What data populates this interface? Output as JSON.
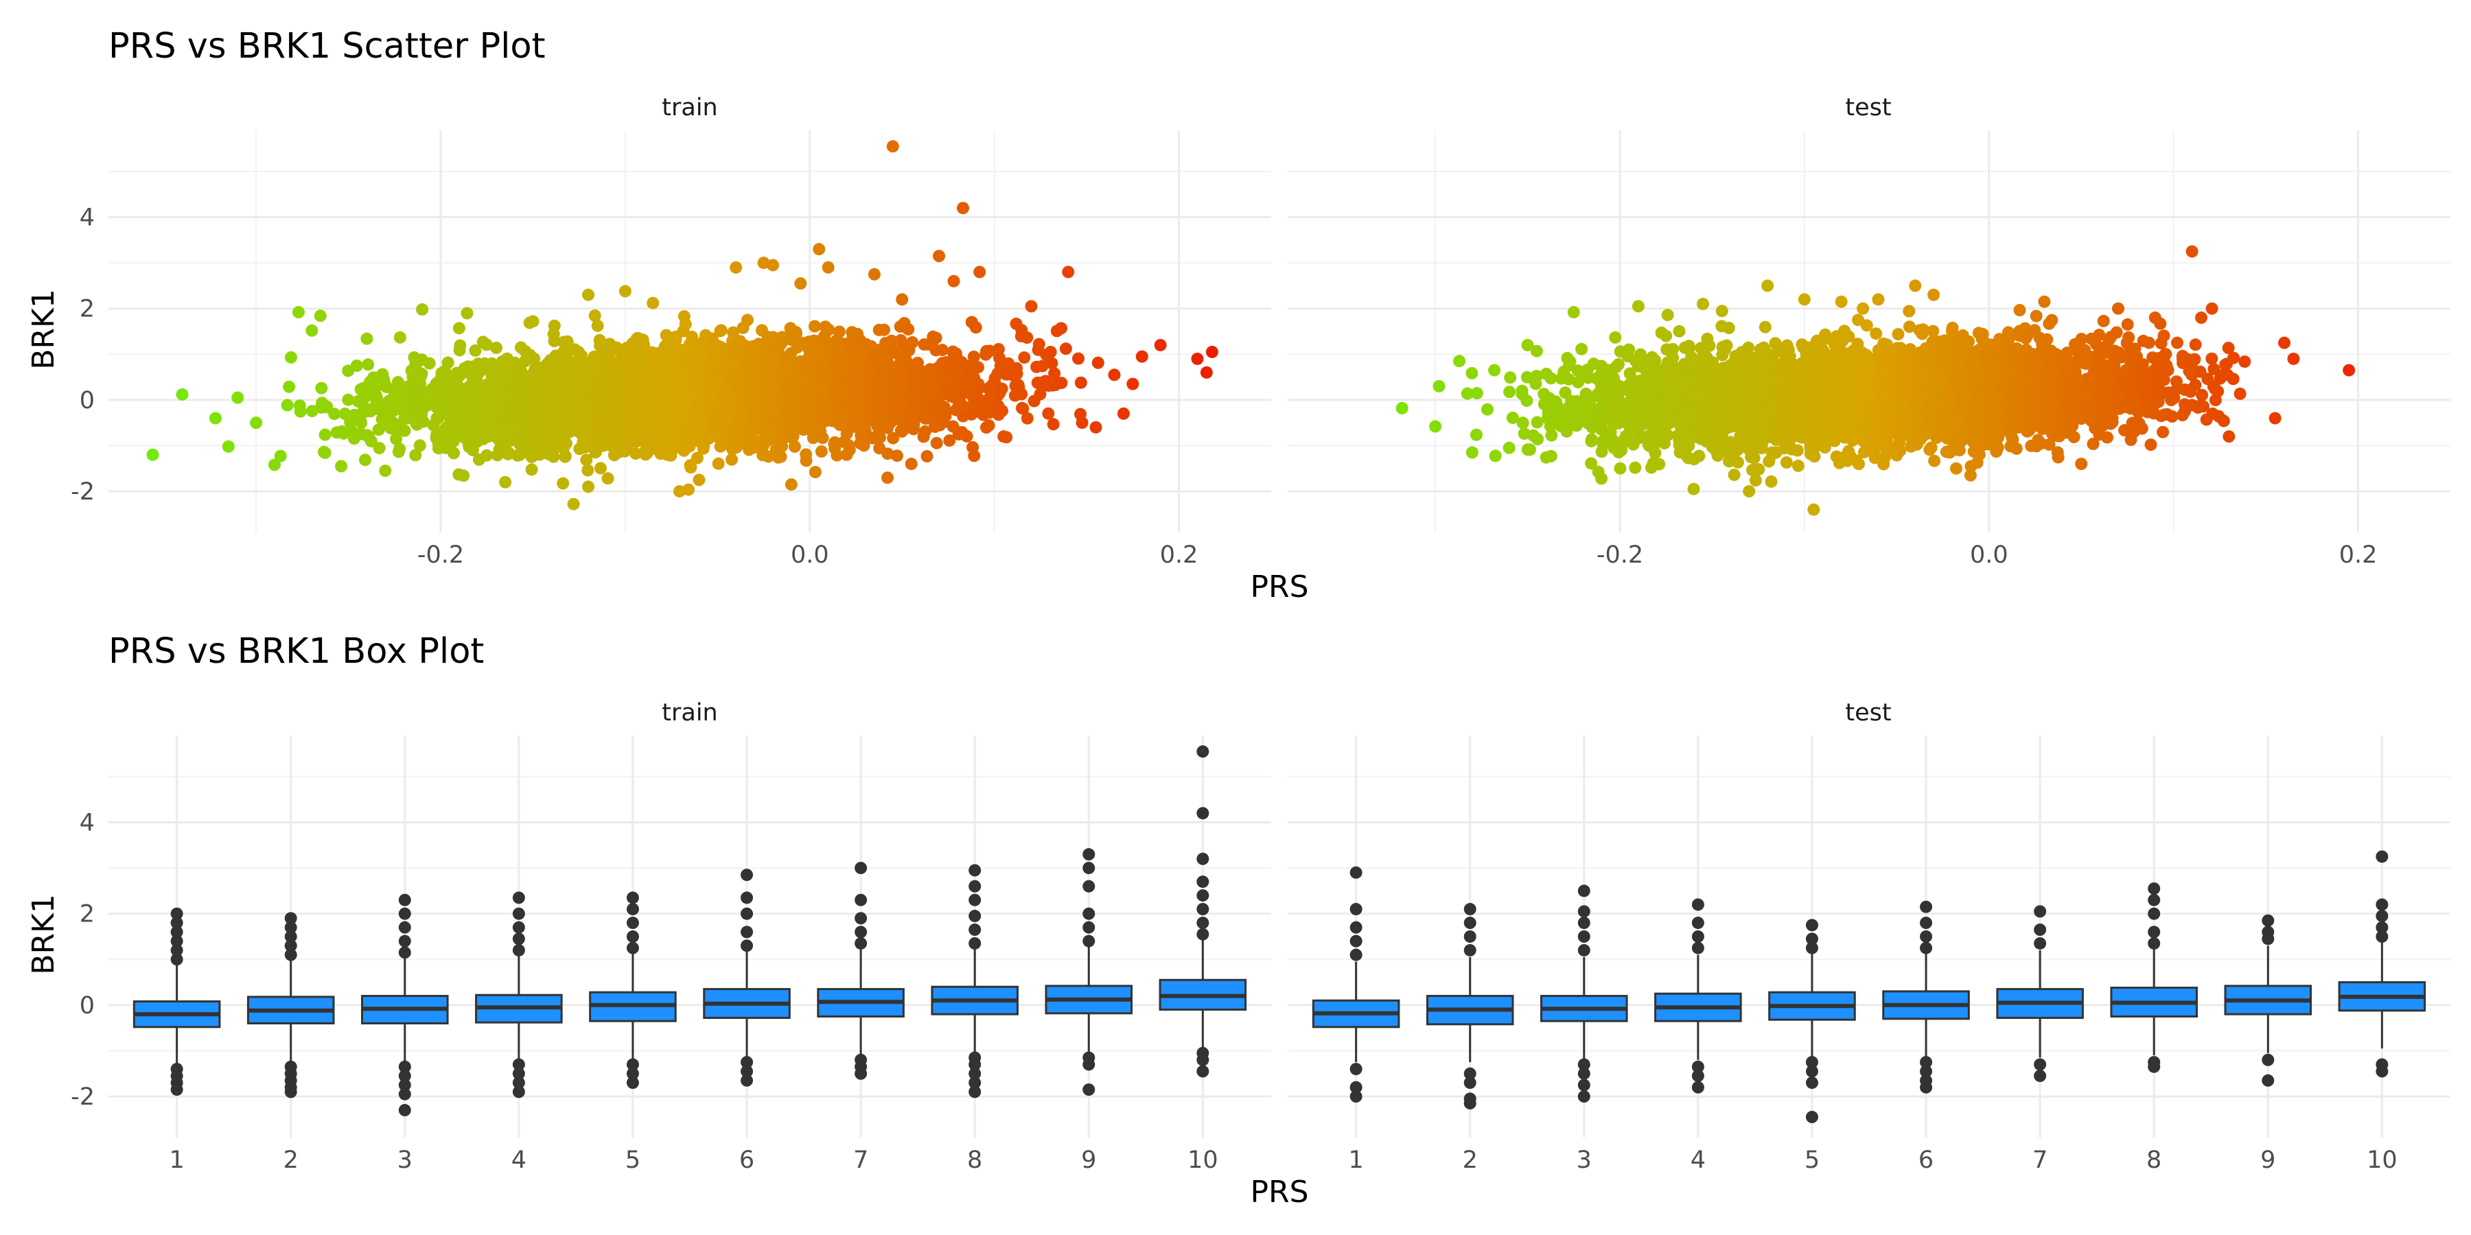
{
  "chart_data": [
    {
      "type": "scatter",
      "title": "PRS vs BRK1 Scatter Plot",
      "xlabel": "PRS",
      "ylabel": "BRK1",
      "facets": [
        "train",
        "test"
      ],
      "xlim": [
        -0.38,
        0.25
      ],
      "ylim": [
        -2.9,
        5.9
      ],
      "x_ticks": [
        -0.2,
        0.0,
        0.2
      ],
      "x_tick_labels": [
        "-0.2",
        "0.0",
        "0.2"
      ],
      "y_ticks": [
        -2,
        0,
        2,
        4
      ],
      "y_tick_labels": [
        "-2",
        "0",
        "2",
        "4"
      ],
      "grid": true,
      "color_scale": {
        "low": "#66f20a",
        "mid": "#d9a300",
        "high": "#ee0f00",
        "variable": "PRS"
      },
      "series": [
        {
          "facet": "train",
          "points": [
            [
              -0.356,
              -1.2
            ],
            [
              -0.34,
              0.12
            ],
            [
              -0.322,
              -0.4
            ],
            [
              -0.315,
              -1.02
            ],
            [
              -0.31,
              0.05
            ],
            [
              -0.3,
              -0.5
            ],
            [
              -0.29,
              -1.42
            ],
            [
              -0.277,
              1.92
            ],
            [
              -0.24,
              1.34
            ],
            [
              -0.23,
              -1.55
            ],
            [
              -0.21,
              1.98
            ],
            [
              -0.19,
              1.57
            ],
            [
              -0.165,
              -1.8
            ],
            [
              -0.15,
              1.72
            ],
            [
              -0.128,
              -2.28
            ],
            [
              -0.12,
              -1.9
            ],
            [
              -0.12,
              2.3
            ],
            [
              -0.1,
              2.38
            ],
            [
              -0.085,
              2.12
            ],
            [
              -0.06,
              -1.75
            ],
            [
              -0.04,
              2.9
            ],
            [
              -0.025,
              3.0
            ],
            [
              -0.02,
              2.95
            ],
            [
              -0.01,
              -1.85
            ],
            [
              -0.005,
              2.55
            ],
            [
              0.005,
              3.3
            ],
            [
              0.01,
              2.9
            ],
            [
              0.02,
              -1.2
            ],
            [
              0.035,
              2.75
            ],
            [
              0.045,
              5.55
            ],
            [
              0.05,
              2.2
            ],
            [
              0.055,
              -1.4
            ],
            [
              0.07,
              3.15
            ],
            [
              0.078,
              2.6
            ],
            [
              0.083,
              4.2
            ],
            [
              0.092,
              2.8
            ],
            [
              0.105,
              -0.8
            ],
            [
              0.12,
              2.05
            ],
            [
              0.14,
              2.8
            ],
            [
              0.155,
              -0.6
            ],
            [
              0.165,
              0.55
            ],
            [
              0.17,
              -0.3
            ],
            [
              0.175,
              0.35
            ],
            [
              0.18,
              0.95
            ],
            [
              0.19,
              1.2
            ],
            [
              0.21,
              0.9
            ],
            [
              0.215,
              0.6
            ],
            [
              0.218,
              1.05
            ]
          ],
          "cloud": {
            "x_range": [
              -0.3,
              0.17
            ],
            "trend": {
              "intercept": 0.2,
              "slope": 1.55
            },
            "spread_sd": 0.55
          }
        },
        {
          "facet": "test",
          "points": [
            [
              -0.318,
              -0.18
            ],
            [
              -0.3,
              -0.58
            ],
            [
              -0.298,
              0.3
            ],
            [
              -0.287,
              0.85
            ],
            [
              -0.28,
              -1.15
            ],
            [
              -0.26,
              -1.05
            ],
            [
              -0.25,
              1.2
            ],
            [
              -0.225,
              1.92
            ],
            [
              -0.21,
              -1.72
            ],
            [
              -0.19,
              2.05
            ],
            [
              -0.175,
              1.4
            ],
            [
              -0.16,
              -1.95
            ],
            [
              -0.155,
              2.1
            ],
            [
              -0.13,
              -2.0
            ],
            [
              -0.12,
              2.5
            ],
            [
              -0.1,
              2.2
            ],
            [
              -0.095,
              -2.4
            ],
            [
              -0.08,
              2.15
            ],
            [
              -0.06,
              2.2
            ],
            [
              -0.04,
              2.5
            ],
            [
              -0.03,
              2.3
            ],
            [
              -0.01,
              -1.65
            ],
            [
              0.03,
              2.15
            ],
            [
              0.05,
              -1.4
            ],
            [
              0.07,
              2.0
            ],
            [
              0.09,
              1.8
            ],
            [
              0.11,
              3.25
            ],
            [
              0.115,
              1.8
            ],
            [
              0.13,
              -0.8
            ],
            [
              0.155,
              -0.4
            ],
            [
              0.16,
              1.25
            ],
            [
              0.165,
              0.9
            ],
            [
              0.195,
              0.65
            ]
          ],
          "cloud": {
            "x_range": [
              -0.29,
              0.16
            ],
            "trend": {
              "intercept": 0.18,
              "slope": 1.5
            },
            "spread_sd": 0.55
          }
        }
      ]
    },
    {
      "type": "box",
      "title": "PRS vs BRK1 Box Plot",
      "xlabel": "PRS",
      "ylabel": "BRK1",
      "facets": [
        "train",
        "test"
      ],
      "categories": [
        "1",
        "2",
        "3",
        "4",
        "5",
        "6",
        "7",
        "8",
        "9",
        "10"
      ],
      "ylim": [
        -2.9,
        5.9
      ],
      "y_ticks": [
        -2,
        0,
        2,
        4
      ],
      "y_tick_labels": [
        "-2",
        "0",
        "2",
        "4"
      ],
      "box_fill": "#1e90ff",
      "box_edge": "#333333",
      "grid": true,
      "series": [
        {
          "facet": "train",
          "boxes": [
            {
              "q1": -0.48,
              "median": -0.2,
              "q3": 0.08,
              "lower": -1.3,
              "upper": 0.9,
              "outliers": [
                -1.4,
                -1.55,
                -1.7,
                -1.85,
                1.0,
                1.2,
                1.4,
                1.6,
                1.8,
                2.0
              ]
            },
            {
              "q1": -0.4,
              "median": -0.12,
              "q3": 0.18,
              "lower": -1.25,
              "upper": 1.0,
              "outliers": [
                -1.35,
                -1.5,
                -1.65,
                -1.8,
                -1.9,
                1.1,
                1.3,
                1.5,
                1.7,
                1.9
              ]
            },
            {
              "q1": -0.4,
              "median": -0.08,
              "q3": 0.2,
              "lower": -1.25,
              "upper": 1.05,
              "outliers": [
                -1.35,
                -1.55,
                -1.75,
                -1.95,
                -2.3,
                1.15,
                1.4,
                1.7,
                2.0,
                2.3
              ]
            },
            {
              "q1": -0.38,
              "median": -0.05,
              "q3": 0.22,
              "lower": -1.2,
              "upper": 1.1,
              "outliers": [
                -1.3,
                -1.5,
                -1.7,
                -1.9,
                1.2,
                1.45,
                1.7,
                2.0,
                2.35
              ]
            },
            {
              "q1": -0.35,
              "median": 0.0,
              "q3": 0.28,
              "lower": -1.2,
              "upper": 1.15,
              "outliers": [
                -1.3,
                -1.5,
                -1.7,
                1.25,
                1.5,
                1.8,
                2.1,
                2.35
              ]
            },
            {
              "q1": -0.28,
              "median": 0.03,
              "q3": 0.35,
              "lower": -1.15,
              "upper": 1.2,
              "outliers": [
                -1.25,
                -1.45,
                -1.65,
                1.3,
                1.6,
                2.0,
                2.35,
                2.85
              ]
            },
            {
              "q1": -0.25,
              "median": 0.07,
              "q3": 0.35,
              "lower": -1.1,
              "upper": 1.25,
              "outliers": [
                -1.2,
                -1.35,
                -1.5,
                1.35,
                1.6,
                1.9,
                2.3,
                3.0
              ]
            },
            {
              "q1": -0.2,
              "median": 0.1,
              "q3": 0.4,
              "lower": -1.05,
              "upper": 1.25,
              "outliers": [
                -1.15,
                -1.3,
                -1.5,
                -1.7,
                -1.9,
                1.35,
                1.65,
                1.95,
                2.3,
                2.6,
                2.95
              ]
            },
            {
              "q1": -0.18,
              "median": 0.12,
              "q3": 0.42,
              "lower": -1.05,
              "upper": 1.3,
              "outliers": [
                -1.15,
                -1.3,
                -1.85,
                1.4,
                1.7,
                2.0,
                2.6,
                3.0,
                3.3
              ]
            },
            {
              "q1": -0.1,
              "median": 0.2,
              "q3": 0.55,
              "lower": -0.95,
              "upper": 1.45,
              "outliers": [
                -1.05,
                -1.2,
                -1.45,
                1.55,
                1.8,
                2.1,
                2.4,
                2.7,
                3.2,
                4.2,
                5.55
              ]
            }
          ]
        },
        {
          "facet": "test",
          "boxes": [
            {
              "q1": -0.48,
              "median": -0.18,
              "q3": 0.1,
              "lower": -1.25,
              "upper": 0.95,
              "outliers": [
                -1.4,
                -1.8,
                -2.0,
                1.1,
                1.4,
                1.7,
                2.1,
                2.9
              ]
            },
            {
              "q1": -0.42,
              "median": -0.1,
              "q3": 0.2,
              "lower": -1.25,
              "upper": 1.05,
              "outliers": [
                -1.5,
                -1.7,
                -2.05,
                -2.15,
                1.2,
                1.5,
                1.8,
                2.1
              ]
            },
            {
              "q1": -0.35,
              "median": -0.08,
              "q3": 0.2,
              "lower": -1.2,
              "upper": 1.05,
              "outliers": [
                -1.3,
                -1.5,
                -1.75,
                -2.0,
                1.2,
                1.5,
                1.8,
                2.05,
                2.5
              ]
            },
            {
              "q1": -0.35,
              "median": -0.05,
              "q3": 0.25,
              "lower": -1.2,
              "upper": 1.1,
              "outliers": [
                -1.35,
                -1.55,
                -1.8,
                1.25,
                1.5,
                1.8,
                2.2
              ]
            },
            {
              "q1": -0.32,
              "median": -0.02,
              "q3": 0.28,
              "lower": -1.15,
              "upper": 1.15,
              "outliers": [
                -1.25,
                -1.45,
                -1.7,
                -2.45,
                1.25,
                1.45,
                1.75
              ]
            },
            {
              "q1": -0.3,
              "median": 0.0,
              "q3": 0.3,
              "lower": -1.15,
              "upper": 1.15,
              "outliers": [
                -1.25,
                -1.45,
                -1.65,
                -1.8,
                1.25,
                1.5,
                1.8,
                2.15
              ]
            },
            {
              "q1": -0.28,
              "median": 0.05,
              "q3": 0.35,
              "lower": -1.15,
              "upper": 1.2,
              "outliers": [
                -1.3,
                -1.55,
                1.35,
                1.65,
                2.05
              ]
            },
            {
              "q1": -0.25,
              "median": 0.05,
              "q3": 0.38,
              "lower": -1.1,
              "upper": 1.25,
              "outliers": [
                -1.25,
                -1.35,
                1.35,
                1.6,
                2.0,
                2.3,
                2.55
              ]
            },
            {
              "q1": -0.2,
              "median": 0.1,
              "q3": 0.42,
              "lower": -1.05,
              "upper": 1.3,
              "outliers": [
                -1.2,
                -1.65,
                1.45,
                1.6,
                1.85
              ]
            },
            {
              "q1": -0.12,
              "median": 0.18,
              "q3": 0.5,
              "lower": -0.95,
              "upper": 1.4,
              "outliers": [
                -1.3,
                -1.45,
                1.5,
                1.7,
                1.95,
                2.2,
                3.25
              ]
            }
          ]
        }
      ]
    }
  ]
}
